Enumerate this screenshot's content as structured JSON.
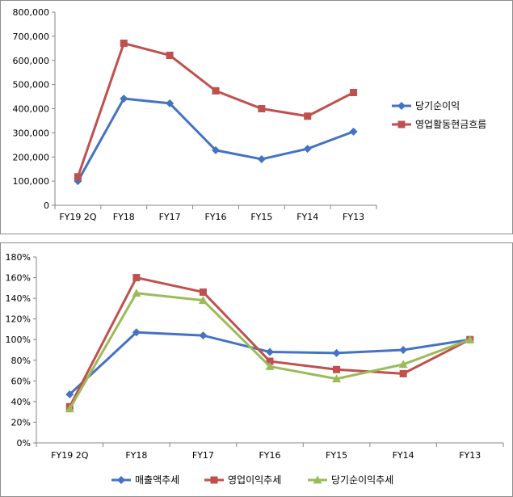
{
  "chart_data": [
    {
      "type": "line",
      "categories": [
        "FY19 2Q",
        "FY18",
        "FY17",
        "FY16",
        "FY15",
        "FY14",
        "FY13"
      ],
      "ylim": [
        0,
        800000
      ],
      "yticks": [
        "0",
        "100,000",
        "200,000",
        "300,000",
        "400,000",
        "500,000",
        "600,000",
        "700,000",
        "800,000"
      ],
      "legend_position": "right",
      "series": [
        {
          "name": "당기순이익",
          "color": "#4472C4",
          "marker": "diamond",
          "values": [
            100000,
            442000,
            422000,
            228000,
            191000,
            234000,
            305000
          ]
        },
        {
          "name": "영업활동현금흐름",
          "color": "#C0504D",
          "marker": "square",
          "values": [
            118000,
            671000,
            621000,
            474000,
            400000,
            369000,
            467000
          ]
        }
      ]
    },
    {
      "type": "line",
      "categories": [
        "FY19 2Q",
        "FY18",
        "FY17",
        "FY16",
        "FY15",
        "FY14",
        "FY13"
      ],
      "ylim": [
        0,
        180
      ],
      "yticks": [
        "0%",
        "20%",
        "40%",
        "60%",
        "80%",
        "100%",
        "120%",
        "140%",
        "160%",
        "180%"
      ],
      "legend_position": "bottom",
      "series": [
        {
          "name": "매출액추세",
          "color": "#4472C4",
          "marker": "diamond",
          "values": [
            47,
            107,
            104,
            88,
            87,
            90,
            100
          ]
        },
        {
          "name": "영업이익추세",
          "color": "#C0504D",
          "marker": "square",
          "values": [
            35,
            160,
            146,
            79,
            71,
            67,
            100
          ]
        },
        {
          "name": "당기순이익추세",
          "color": "#9BBB59",
          "marker": "triangle",
          "values": [
            33,
            145,
            138,
            74,
            62,
            76,
            100
          ]
        }
      ]
    }
  ]
}
